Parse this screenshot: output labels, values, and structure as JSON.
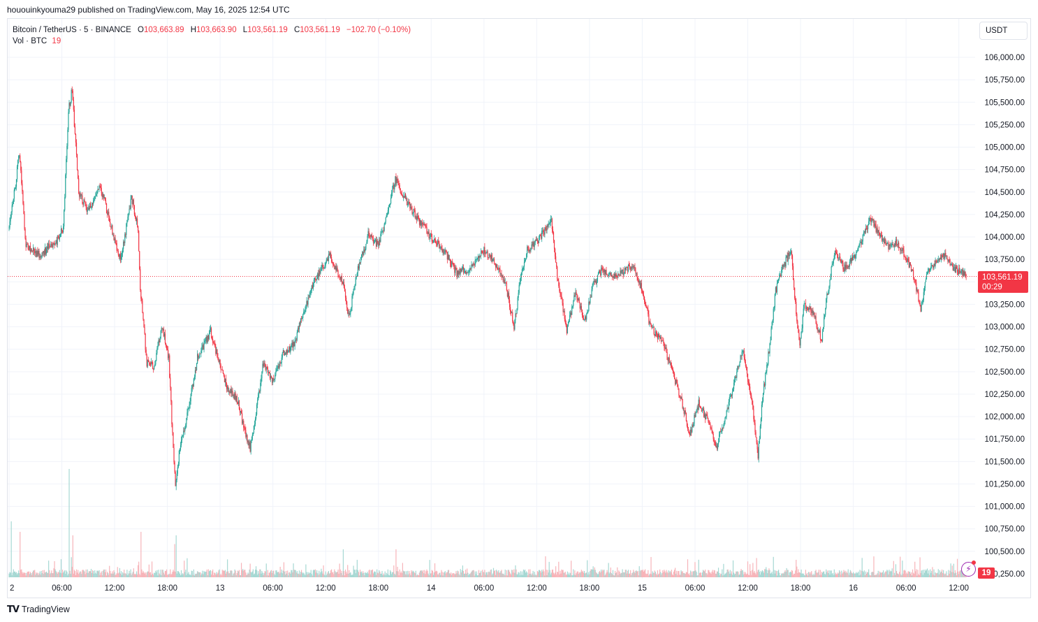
{
  "header": {
    "author": "hououinkyouma29",
    "published_on": "published on TradingView.com, May 16, 2025 12:54 UTC"
  },
  "legend": {
    "symbol": "Bitcoin / TetherUS · 5 · BINANCE",
    "open_label": "O",
    "open": "103,663.89",
    "high_label": "H",
    "high": "103,663.90",
    "low_label": "L",
    "low": "103,561.19",
    "close_label": "C",
    "close": "103,561.19",
    "change": "−102.70 (−0.10%)",
    "vol_label": "Vol · BTC",
    "vol_value": "19"
  },
  "price_scale": {
    "currency": "USDT",
    "last_price": "103,561.19",
    "countdown": "00:29",
    "last_volume": "19"
  },
  "footer": {
    "logo_text": "TradingView",
    "logo_icon": "tradingview-logo-icon"
  },
  "colors": {
    "up": "#26a69a",
    "down": "#f23645",
    "grid": "#f0f3fa",
    "axis_text": "#131722",
    "vol_up": "#a6d8d3",
    "vol_down": "#f7b4b9"
  },
  "chart_data": {
    "type": "candlestick",
    "symbol": "BTCUSDT",
    "interval": "5",
    "exchange": "BINANCE",
    "ylim": [
      100100,
      106400
    ],
    "y_ticks": [
      100250,
      100500,
      100750,
      101000,
      101250,
      101500,
      101750,
      102000,
      102250,
      102500,
      102750,
      103000,
      103250,
      103500,
      103750,
      104000,
      104250,
      104500,
      104750,
      105000,
      105250,
      105500,
      105750,
      106000
    ],
    "y_tick_labels": [
      "100,250.00",
      "100,500.00",
      "100,750.00",
      "101,000.00",
      "101,250.00",
      "101,500.00",
      "101,750.00",
      "102,000.00",
      "102,250.00",
      "102,500.00",
      "102,750.00",
      "103,000.00",
      "103,250.00",
      "103,500.00",
      "103,750.00",
      "104,000.00",
      "104,250.00",
      "104,500.00",
      "104,750.00",
      "105,000.00",
      "105,250.00",
      "105,500.00",
      "105,750.00",
      "106,000.00"
    ],
    "x_start": "2025-05-12 00:00",
    "x_end": "2025-05-16 12:54",
    "x_ticks": [
      "2025-05-12 00:00",
      "2025-05-12 06:00",
      "2025-05-12 12:00",
      "2025-05-12 18:00",
      "2025-05-13 00:00",
      "2025-05-13 06:00",
      "2025-05-13 12:00",
      "2025-05-13 18:00",
      "2025-05-14 00:00",
      "2025-05-14 06:00",
      "2025-05-14 12:00",
      "2025-05-14 18:00",
      "2025-05-15 00:00",
      "2025-05-15 06:00",
      "2025-05-15 12:00",
      "2025-05-15 18:00",
      "2025-05-16 00:00",
      "2025-05-16 06:00",
      "2025-05-16 12:00"
    ],
    "x_tick_labels": [
      "2",
      "06:00",
      "12:00",
      "18:00",
      "13",
      "06:00",
      "12:00",
      "18:00",
      "14",
      "06:00",
      "12:00",
      "18:00",
      "15",
      "06:00",
      "12:00",
      "18:00",
      "16",
      "06:00",
      "12:00"
    ],
    "price_path": [
      [
        "2025-05-12 00:00",
        104100
      ],
      [
        "2025-05-12 00:50",
        104600
      ],
      [
        "2025-05-12 01:15",
        104950
      ],
      [
        "2025-05-12 02:00",
        103900
      ],
      [
        "2025-05-12 03:30",
        103800
      ],
      [
        "2025-05-12 05:30",
        103950
      ],
      [
        "2025-05-12 06:15",
        104100
      ],
      [
        "2025-05-12 06:50",
        105400
      ],
      [
        "2025-05-12 07:15",
        105650
      ],
      [
        "2025-05-12 08:00",
        104500
      ],
      [
        "2025-05-12 09:00",
        104300
      ],
      [
        "2025-05-12 10:30",
        104550
      ],
      [
        "2025-05-12 12:00",
        104000
      ],
      [
        "2025-05-12 12:45",
        103750
      ],
      [
        "2025-05-12 13:30",
        104150
      ],
      [
        "2025-05-12 14:00",
        104450
      ],
      [
        "2025-05-12 14:45",
        104100
      ],
      [
        "2025-05-12 15:00",
        103450
      ],
      [
        "2025-05-12 15:45",
        102600
      ],
      [
        "2025-05-12 16:30",
        102550
      ],
      [
        "2025-05-12 17:30",
        103000
      ],
      [
        "2025-05-12 18:15",
        102650
      ],
      [
        "2025-05-12 18:35",
        101950
      ],
      [
        "2025-05-12 19:00",
        101200
      ],
      [
        "2025-05-12 19:30",
        101650
      ],
      [
        "2025-05-12 20:30",
        102100
      ],
      [
        "2025-05-12 21:30",
        102650
      ],
      [
        "2025-05-12 23:00",
        102950
      ],
      [
        "2025-05-13 00:15",
        102500
      ],
      [
        "2025-05-13 01:00",
        102300
      ],
      [
        "2025-05-13 02:00",
        102200
      ],
      [
        "2025-05-13 03:00",
        101800
      ],
      [
        "2025-05-13 03:30",
        101650
      ],
      [
        "2025-05-13 04:15",
        102100
      ],
      [
        "2025-05-13 05:00",
        102600
      ],
      [
        "2025-05-13 06:00",
        102400
      ],
      [
        "2025-05-13 07:15",
        102700
      ],
      [
        "2025-05-13 08:30",
        102800
      ],
      [
        "2025-05-13 09:30",
        103150
      ],
      [
        "2025-05-13 11:00",
        103550
      ],
      [
        "2025-05-13 12:30",
        103800
      ],
      [
        "2025-05-13 14:00",
        103500
      ],
      [
        "2025-05-13 14:45",
        103100
      ],
      [
        "2025-05-13 15:30",
        103550
      ],
      [
        "2025-05-13 17:00",
        104050
      ],
      [
        "2025-05-13 18:00",
        103900
      ],
      [
        "2025-05-13 19:00",
        104200
      ],
      [
        "2025-05-13 20:00",
        104650
      ],
      [
        "2025-05-13 21:00",
        104450
      ],
      [
        "2025-05-13 22:30",
        104200
      ],
      [
        "2025-05-14 00:00",
        104000
      ],
      [
        "2025-05-14 01:30",
        103850
      ],
      [
        "2025-05-14 03:00",
        103600
      ],
      [
        "2025-05-14 04:30",
        103650
      ],
      [
        "2025-05-14 06:00",
        103850
      ],
      [
        "2025-05-14 07:00",
        103750
      ],
      [
        "2025-05-14 08:30",
        103500
      ],
      [
        "2025-05-14 09:30",
        103000
      ],
      [
        "2025-05-14 10:15",
        103550
      ],
      [
        "2025-05-14 11:00",
        103850
      ],
      [
        "2025-05-14 12:30",
        104000
      ],
      [
        "2025-05-14 13:45",
        104200
      ],
      [
        "2025-05-14 14:30",
        103500
      ],
      [
        "2025-05-14 15:30",
        102950
      ],
      [
        "2025-05-14 16:30",
        103400
      ],
      [
        "2025-05-14 17:30",
        103050
      ],
      [
        "2025-05-14 18:30",
        103450
      ],
      [
        "2025-05-14 19:30",
        103650
      ],
      [
        "2025-05-14 21:00",
        103550
      ],
      [
        "2025-05-14 23:00",
        103700
      ],
      [
        "2025-05-15 00:15",
        103350
      ],
      [
        "2025-05-15 01:00",
        103000
      ],
      [
        "2025-05-15 02:30",
        102800
      ],
      [
        "2025-05-15 03:30",
        102500
      ],
      [
        "2025-05-15 04:30",
        102200
      ],
      [
        "2025-05-15 05:30",
        101800
      ],
      [
        "2025-05-15 06:30",
        102150
      ],
      [
        "2025-05-15 07:30",
        101950
      ],
      [
        "2025-05-15 08:30",
        101650
      ],
      [
        "2025-05-15 09:30",
        102000
      ],
      [
        "2025-05-15 10:30",
        102350
      ],
      [
        "2025-05-15 11:30",
        102750
      ],
      [
        "2025-05-15 12:30",
        102200
      ],
      [
        "2025-05-15 13:15",
        101550
      ],
      [
        "2025-05-15 13:45",
        102200
      ],
      [
        "2025-05-15 14:30",
        102750
      ],
      [
        "2025-05-15 15:15",
        103400
      ],
      [
        "2025-05-15 16:00",
        103650
      ],
      [
        "2025-05-15 17:00",
        103850
      ],
      [
        "2025-05-15 17:30",
        103250
      ],
      [
        "2025-05-15 18:00",
        102750
      ],
      [
        "2025-05-15 18:30",
        103250
      ],
      [
        "2025-05-15 19:30",
        103150
      ],
      [
        "2025-05-15 20:30",
        102850
      ],
      [
        "2025-05-15 21:00",
        103300
      ],
      [
        "2025-05-15 22:00",
        103850
      ],
      [
        "2025-05-15 23:00",
        103650
      ],
      [
        "2025-05-16 00:00",
        103750
      ],
      [
        "2025-05-16 01:00",
        103950
      ],
      [
        "2025-05-16 02:00",
        104200
      ],
      [
        "2025-05-16 03:00",
        104050
      ],
      [
        "2025-05-16 04:00",
        103900
      ],
      [
        "2025-05-16 05:00",
        103950
      ],
      [
        "2025-05-16 06:00",
        103800
      ],
      [
        "2025-05-16 07:00",
        103550
      ],
      [
        "2025-05-16 07:45",
        103200
      ],
      [
        "2025-05-16 08:30",
        103600
      ],
      [
        "2025-05-16 09:30",
        103700
      ],
      [
        "2025-05-16 10:30",
        103800
      ],
      [
        "2025-05-16 11:30",
        103650
      ],
      [
        "2025-05-16 12:30",
        103600
      ],
      [
        "2025-05-16 12:54",
        103561.19
      ]
    ],
    "last_price": 103561.19,
    "last_volume": 19,
    "volume_ylim": [
      0,
      400
    ],
    "volume_spikes": [
      [
        "2025-05-12 00:15",
        160
      ],
      [
        "2025-05-12 01:15",
        130
      ],
      [
        "2025-05-12 06:50",
        310
      ],
      [
        "2025-05-12 07:15",
        120
      ],
      [
        "2025-05-12 15:00",
        130
      ],
      [
        "2025-05-12 18:50",
        95
      ],
      [
        "2025-05-12 19:00",
        120
      ],
      [
        "2025-05-13 14:00",
        80
      ],
      [
        "2025-05-13 20:00",
        80
      ],
      [
        "2025-05-14 13:00",
        60
      ],
      [
        "2025-05-15 13:00",
        55
      ],
      [
        "2025-05-15 17:30",
        50
      ],
      [
        "2025-05-16 01:00",
        50
      ]
    ]
  }
}
